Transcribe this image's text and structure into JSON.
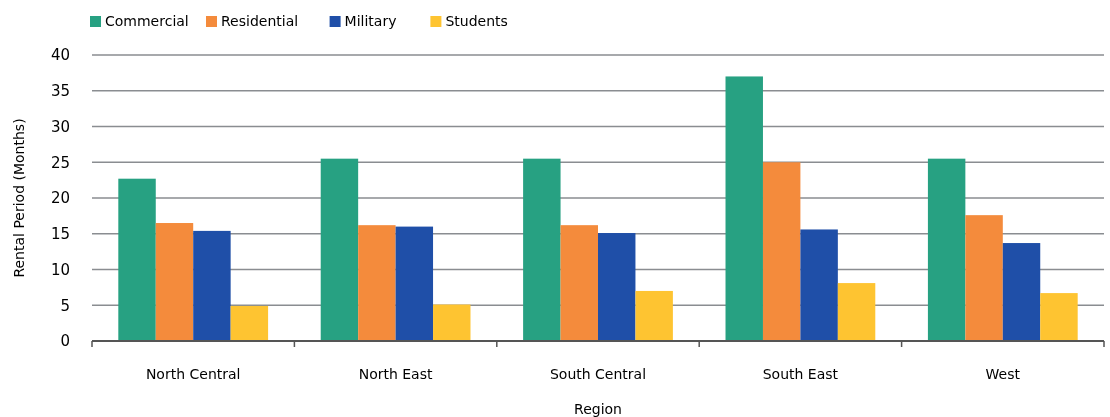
{
  "chart_data": {
    "type": "bar",
    "xlabel": "Region",
    "ylabel": "Rental Period (Months)",
    "categories": [
      "North Central",
      "North East",
      "South Central",
      "South East",
      "West"
    ],
    "series": [
      {
        "name": "Commercial",
        "color": "#27a182",
        "values": [
          22.7,
          25.5,
          25.5,
          37,
          25.5
        ]
      },
      {
        "name": "Residential",
        "color": "#f48b3c",
        "values": [
          16.5,
          16.2,
          16.2,
          25,
          17.6
        ]
      },
      {
        "name": "Military",
        "color": "#1f4fa8",
        "values": [
          15.4,
          16,
          15.1,
          15.6,
          13.7
        ]
      },
      {
        "name": "Students",
        "color": "#fec431",
        "values": [
          4.9,
          5.1,
          7,
          8.1,
          6.7
        ]
      }
    ],
    "ylim": [
      0,
      40
    ],
    "yticks": [
      0,
      5,
      10,
      15,
      20,
      25,
      30,
      35,
      40
    ],
    "grid": "y",
    "legend": "top left"
  }
}
